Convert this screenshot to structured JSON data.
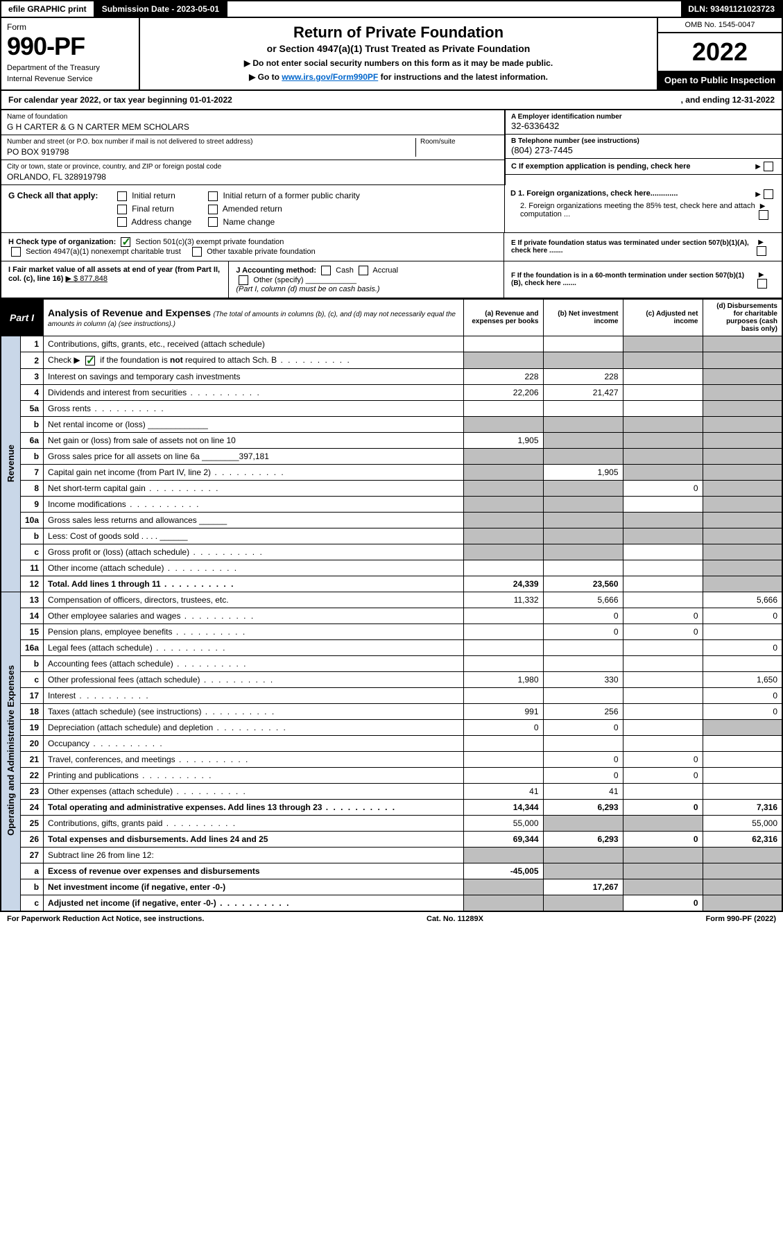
{
  "topbar": {
    "efile": "efile GRAPHIC print",
    "sub_label": "Submission Date - 2023-05-01",
    "dln": "DLN: 93491121023723"
  },
  "hdr": {
    "form": "Form",
    "form_no": "990-PF",
    "dept1": "Department of the Treasury",
    "dept2": "Internal Revenue Service",
    "title": "Return of Private Foundation",
    "subtitle": "or Section 4947(a)(1) Trust Treated as Private Foundation",
    "note1": "▶ Do not enter social security numbers on this form as it may be made public.",
    "note2_pre": "▶ Go to ",
    "note2_link": "www.irs.gov/Form990PF",
    "note2_post": " for instructions and the latest information.",
    "omb": "OMB No. 1545-0047",
    "year": "2022",
    "open": "Open to Public Inspection"
  },
  "period": {
    "left": "For calendar year 2022, or tax year beginning 01-01-2022",
    "right": ", and ending 12-31-2022"
  },
  "ident": {
    "name_lbl": "Name of foundation",
    "name": "G H CARTER & G N CARTER MEM SCHOLARS",
    "addr_lbl": "Number and street (or P.O. box number if mail is not delivered to street address)",
    "room_lbl": "Room/suite",
    "addr": "PO BOX 919798",
    "city_lbl": "City or town, state or province, country, and ZIP or foreign postal code",
    "city": "ORLANDO, FL  328919798",
    "a_lbl": "A Employer identification number",
    "ein": "32-6336432",
    "b_lbl": "B Telephone number (see instructions)",
    "phone": "(804) 273-7445",
    "c_lbl": "C If exemption application is pending, check here"
  },
  "g": {
    "label": "G Check all that apply:",
    "opts": [
      "Initial return",
      "Final return",
      "Address change",
      "Initial return of a former public charity",
      "Amended return",
      "Name change"
    ]
  },
  "d": {
    "d1": "D 1. Foreign organizations, check here.............",
    "d2": "2. Foreign organizations meeting the 85% test, check here and attach computation ..."
  },
  "h": {
    "label": "H Check type of organization:",
    "o1": "Section 501(c)(3) exempt private foundation",
    "o2": "Section 4947(a)(1) nonexempt charitable trust",
    "o3": "Other taxable private foundation"
  },
  "e": "E  If private foundation status was terminated under section 507(b)(1)(A), check here .......",
  "i": {
    "label": "I Fair market value of all assets at end of year (from Part II, col. (c), line 16)",
    "val": "▶ $  877,848"
  },
  "j": {
    "label": "J Accounting method:",
    "o1": "Cash",
    "o2": "Accrual",
    "o3": "Other (specify)",
    "note": "(Part I, column (d) must be on cash basis.)"
  },
  "f": "F  If the foundation is in a 60-month termination under section 507(b)(1)(B), check here .......",
  "part1": {
    "label": "Part I",
    "title": "Analysis of Revenue and Expenses",
    "paren": "(The total of amounts in columns (b), (c), and (d) may not necessarily equal the amounts in column (a) (see instructions).)"
  },
  "cols": {
    "a": "(a)  Revenue and expenses per books",
    "b": "(b)  Net investment income",
    "c": "(c)  Adjusted net income",
    "d": "(d)  Disbursements for charitable purposes (cash basis only)"
  },
  "sides": {
    "rev": "Revenue",
    "exp": "Operating and Administrative Expenses"
  },
  "rows": [
    {
      "n": "1",
      "d": "Contributions, gifts, grants, etc., received (attach schedule)",
      "a": "",
      "b": "",
      "c": "s",
      "dcol": "s"
    },
    {
      "n": "2",
      "d": "Check ▶ ☑ if the foundation is not required to attach Sch. B",
      "a": "s",
      "b": "s",
      "c": "s",
      "dcol": "s",
      "dots": true,
      "nobold": true,
      "checkgreen": true
    },
    {
      "n": "3",
      "d": "Interest on savings and temporary cash investments",
      "a": "228",
      "b": "228",
      "c": "",
      "dcol": "s"
    },
    {
      "n": "4",
      "d": "Dividends and interest from securities",
      "a": "22,206",
      "b": "21,427",
      "c": "",
      "dcol": "s",
      "dots": true
    },
    {
      "n": "5a",
      "d": "Gross rents",
      "a": "",
      "b": "",
      "c": "",
      "dcol": "s",
      "dots": true
    },
    {
      "n": "b",
      "d": "Net rental income or (loss)  _____________",
      "a": "s",
      "b": "s",
      "c": "s",
      "dcol": "s"
    },
    {
      "n": "6a",
      "d": "Net gain or (loss) from sale of assets not on line 10",
      "a": "1,905",
      "b": "s",
      "c": "s",
      "dcol": "s"
    },
    {
      "n": "b",
      "d": "Gross sales price for all assets on line 6a ________397,181",
      "a": "s",
      "b": "s",
      "c": "s",
      "dcol": "s"
    },
    {
      "n": "7",
      "d": "Capital gain net income (from Part IV, line 2)",
      "a": "s",
      "b": "1,905",
      "c": "s",
      "dcol": "s",
      "dots": true
    },
    {
      "n": "8",
      "d": "Net short-term capital gain",
      "a": "s",
      "b": "s",
      "c": "0",
      "dcol": "s",
      "dots": true
    },
    {
      "n": "9",
      "d": "Income modifications",
      "a": "s",
      "b": "s",
      "c": "",
      "dcol": "s",
      "dots": true
    },
    {
      "n": "10a",
      "d": "Gross sales less returns and allowances  ______",
      "a": "s",
      "b": "s",
      "c": "s",
      "dcol": "s"
    },
    {
      "n": "b",
      "d": "Less: Cost of goods sold     .  .  .  .  ______",
      "a": "s",
      "b": "s",
      "c": "s",
      "dcol": "s"
    },
    {
      "n": "c",
      "d": "Gross profit or (loss) (attach schedule)",
      "a": "s",
      "b": "s",
      "c": "",
      "dcol": "s",
      "dots": true
    },
    {
      "n": "11",
      "d": "Other income (attach schedule)",
      "a": "",
      "b": "",
      "c": "",
      "dcol": "s",
      "dots": true
    },
    {
      "n": "12",
      "d": "Total. Add lines 1 through 11",
      "a": "24,339",
      "b": "23,560",
      "c": "",
      "dcol": "s",
      "bold": true,
      "dots": true
    }
  ],
  "rows2": [
    {
      "n": "13",
      "d": "Compensation of officers, directors, trustees, etc.",
      "a": "11,332",
      "b": "5,666",
      "c": "",
      "dcol": "5,666"
    },
    {
      "n": "14",
      "d": "Other employee salaries and wages",
      "a": "",
      "b": "0",
      "c": "0",
      "dcol": "0",
      "dots": true
    },
    {
      "n": "15",
      "d": "Pension plans, employee benefits",
      "a": "",
      "b": "0",
      "c": "0",
      "dcol": "",
      "dots": true
    },
    {
      "n": "16a",
      "d": "Legal fees (attach schedule)",
      "a": "",
      "b": "",
      "c": "",
      "dcol": "0",
      "dots": true
    },
    {
      "n": "b",
      "d": "Accounting fees (attach schedule)",
      "a": "",
      "b": "",
      "c": "",
      "dcol": "",
      "dots": true
    },
    {
      "n": "c",
      "d": "Other professional fees (attach schedule)",
      "a": "1,980",
      "b": "330",
      "c": "",
      "dcol": "1,650",
      "dots": true
    },
    {
      "n": "17",
      "d": "Interest",
      "a": "",
      "b": "",
      "c": "",
      "dcol": "0",
      "dots": true
    },
    {
      "n": "18",
      "d": "Taxes (attach schedule) (see instructions)",
      "a": "991",
      "b": "256",
      "c": "",
      "dcol": "0",
      "dots": true
    },
    {
      "n": "19",
      "d": "Depreciation (attach schedule) and depletion",
      "a": "0",
      "b": "0",
      "c": "",
      "dcol": "s",
      "dots": true
    },
    {
      "n": "20",
      "d": "Occupancy",
      "a": "",
      "b": "",
      "c": "",
      "dcol": "",
      "dots": true
    },
    {
      "n": "21",
      "d": "Travel, conferences, and meetings",
      "a": "",
      "b": "0",
      "c": "0",
      "dcol": "",
      "dots": true
    },
    {
      "n": "22",
      "d": "Printing and publications",
      "a": "",
      "b": "0",
      "c": "0",
      "dcol": "",
      "dots": true
    },
    {
      "n": "23",
      "d": "Other expenses (attach schedule)",
      "a": "41",
      "b": "41",
      "c": "",
      "dcol": "",
      "dots": true
    },
    {
      "n": "24",
      "d": "Total operating and administrative expenses. Add lines 13 through 23",
      "a": "14,344",
      "b": "6,293",
      "c": "0",
      "dcol": "7,316",
      "bold": true,
      "dots": true
    },
    {
      "n": "25",
      "d": "Contributions, gifts, grants paid",
      "a": "55,000",
      "b": "s",
      "c": "s",
      "dcol": "55,000",
      "dots": true
    },
    {
      "n": "26",
      "d": "Total expenses and disbursements. Add lines 24 and 25",
      "a": "69,344",
      "b": "6,293",
      "c": "0",
      "dcol": "62,316",
      "bold": true
    },
    {
      "n": "27",
      "d": "Subtract line 26 from line 12:",
      "a": "s",
      "b": "s",
      "c": "s",
      "dcol": "s"
    },
    {
      "n": "a",
      "d": "Excess of revenue over expenses and disbursements",
      "a": "-45,005",
      "b": "s",
      "c": "s",
      "dcol": "s",
      "bold": true
    },
    {
      "n": "b",
      "d": "Net investment income (if negative, enter -0-)",
      "a": "s",
      "b": "17,267",
      "c": "s",
      "dcol": "s",
      "bold": true
    },
    {
      "n": "c",
      "d": "Adjusted net income (if negative, enter -0-)",
      "a": "s",
      "b": "s",
      "c": "0",
      "dcol": "s",
      "bold": true,
      "dots": true
    }
  ],
  "footer": {
    "left": "For Paperwork Reduction Act Notice, see instructions.",
    "mid": "Cat. No. 11289X",
    "right": "Form 990-PF (2022)"
  }
}
